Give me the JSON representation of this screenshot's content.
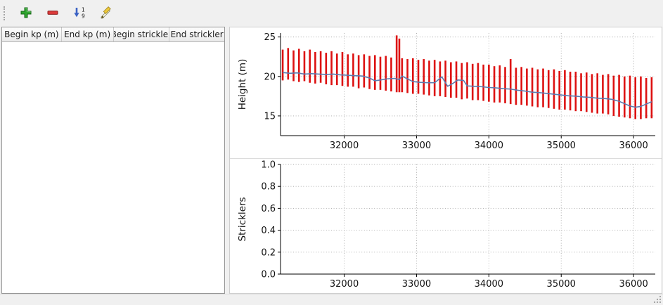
{
  "toolbar": {
    "buttons": [
      {
        "id": "add",
        "tooltip": "Add"
      },
      {
        "id": "remove",
        "tooltip": "Remove"
      },
      {
        "id": "sort",
        "tooltip": "Sort"
      },
      {
        "id": "edit",
        "tooltip": "Edit"
      }
    ]
  },
  "table": {
    "columns": [
      "Begin kp (m)",
      "End kp (m)",
      "Begin strickler",
      "End strickler"
    ],
    "rows": []
  },
  "colors": {
    "bars": "#dd1111",
    "line": "#5b7cb0",
    "grid": "#a8a8a8",
    "axis": "#000000"
  },
  "chart_data": [
    {
      "type": "line",
      "subtype": "range-bars-with-mean-line",
      "title": "",
      "xlabel": "",
      "ylabel": "Height (m)",
      "xlim": [
        31120,
        36300
      ],
      "ylim": [
        12.5,
        25.5
      ],
      "xticks": [
        32000,
        33000,
        34000,
        35000,
        36000
      ],
      "xtick_labels": [
        "32000",
        "33000",
        "34000",
        "35000",
        "36000"
      ],
      "yticks": [
        15,
        20,
        25
      ],
      "ytick_labels": [
        "15",
        "20",
        "25"
      ],
      "grid": true,
      "legend": null,
      "bars": [
        [
          31150,
          19.5,
          23.4
        ],
        [
          31225,
          19.6,
          23.6
        ],
        [
          31300,
          19.4,
          23.3
        ],
        [
          31375,
          19.3,
          23.5
        ],
        [
          31450,
          19.4,
          23.2
        ],
        [
          31525,
          19.2,
          23.4
        ],
        [
          31600,
          19.1,
          23.1
        ],
        [
          31675,
          19.2,
          23.2
        ],
        [
          31750,
          19.0,
          23.0
        ],
        [
          31825,
          18.9,
          23.2
        ],
        [
          31900,
          18.9,
          22.9
        ],
        [
          31975,
          18.8,
          23.1
        ],
        [
          32050,
          18.7,
          22.8
        ],
        [
          32125,
          18.7,
          22.9
        ],
        [
          32200,
          18.5,
          22.7
        ],
        [
          32275,
          18.6,
          22.8
        ],
        [
          32350,
          18.4,
          22.6
        ],
        [
          32425,
          18.3,
          22.7
        ],
        [
          32500,
          18.3,
          22.5
        ],
        [
          32575,
          18.2,
          22.6
        ],
        [
          32650,
          18.1,
          22.4
        ],
        [
          32725,
          18.0,
          25.2
        ],
        [
          32762,
          18.0,
          24.8
        ],
        [
          32800,
          18.0,
          22.3
        ],
        [
          32875,
          17.9,
          22.2
        ],
        [
          32950,
          17.8,
          22.3
        ],
        [
          33025,
          17.8,
          22.1
        ],
        [
          33100,
          17.7,
          22.2
        ],
        [
          33175,
          17.6,
          22.0
        ],
        [
          33250,
          17.5,
          22.1
        ],
        [
          33325,
          17.5,
          21.9
        ],
        [
          33400,
          17.4,
          22.0
        ],
        [
          33475,
          17.3,
          21.8
        ],
        [
          33550,
          17.3,
          21.9
        ],
        [
          33625,
          17.1,
          21.7
        ],
        [
          33700,
          17.2,
          21.8
        ],
        [
          33775,
          17.0,
          21.6
        ],
        [
          33850,
          17.0,
          21.7
        ],
        [
          33925,
          16.9,
          21.5
        ],
        [
          34000,
          16.8,
          21.5
        ],
        [
          34075,
          16.7,
          21.3
        ],
        [
          34150,
          16.7,
          21.4
        ],
        [
          34225,
          16.6,
          21.2
        ],
        [
          34300,
          16.5,
          22.2
        ],
        [
          34375,
          16.4,
          21.1
        ],
        [
          34450,
          16.4,
          21.2
        ],
        [
          34525,
          16.3,
          21.0
        ],
        [
          34600,
          16.2,
          21.1
        ],
        [
          34675,
          16.1,
          20.9
        ],
        [
          34750,
          16.1,
          21.0
        ],
        [
          34825,
          16.0,
          20.8
        ],
        [
          34900,
          15.9,
          20.9
        ],
        [
          34975,
          15.8,
          20.7
        ],
        [
          35050,
          15.8,
          20.8
        ],
        [
          35125,
          15.7,
          20.6
        ],
        [
          35200,
          15.6,
          20.6
        ],
        [
          35275,
          15.6,
          20.4
        ],
        [
          35350,
          15.5,
          20.5
        ],
        [
          35425,
          15.4,
          20.3
        ],
        [
          35500,
          15.3,
          20.4
        ],
        [
          35575,
          15.3,
          20.2
        ],
        [
          35650,
          15.2,
          20.3
        ],
        [
          35725,
          15.0,
          20.1
        ],
        [
          35800,
          14.9,
          20.2
        ],
        [
          35875,
          14.8,
          20.0
        ],
        [
          35950,
          14.7,
          20.1
        ],
        [
          36025,
          14.6,
          19.9
        ],
        [
          36100,
          14.6,
          20.0
        ],
        [
          36175,
          14.7,
          19.8
        ],
        [
          36250,
          14.7,
          19.9
        ]
      ],
      "line": [
        [
          31150,
          20.5
        ],
        [
          31250,
          20.4
        ],
        [
          31350,
          20.45
        ],
        [
          31450,
          20.3
        ],
        [
          31550,
          20.35
        ],
        [
          31650,
          20.3
        ],
        [
          31750,
          20.25
        ],
        [
          31850,
          20.3
        ],
        [
          31950,
          20.2
        ],
        [
          32050,
          20.15
        ],
        [
          32150,
          20.1
        ],
        [
          32250,
          20.05
        ],
        [
          32350,
          19.8
        ],
        [
          32425,
          19.45
        ],
        [
          32500,
          19.55
        ],
        [
          32600,
          19.7
        ],
        [
          32700,
          19.75
        ],
        [
          32760,
          19.6
        ],
        [
          32800,
          20.05
        ],
        [
          32850,
          19.8
        ],
        [
          32950,
          19.35
        ],
        [
          33050,
          19.25
        ],
        [
          33150,
          19.2
        ],
        [
          33250,
          19.2
        ],
        [
          33350,
          19.95
        ],
        [
          33430,
          18.75
        ],
        [
          33500,
          19.1
        ],
        [
          33570,
          19.55
        ],
        [
          33650,
          19.5
        ],
        [
          33700,
          18.8
        ],
        [
          33800,
          18.75
        ],
        [
          33900,
          18.7
        ],
        [
          34000,
          18.6
        ],
        [
          34100,
          18.55
        ],
        [
          34200,
          18.45
        ],
        [
          34300,
          18.4
        ],
        [
          34400,
          18.25
        ],
        [
          34500,
          18.15
        ],
        [
          34600,
          18.0
        ],
        [
          34700,
          17.95
        ],
        [
          34800,
          17.85
        ],
        [
          34900,
          17.75
        ],
        [
          35000,
          17.65
        ],
        [
          35100,
          17.55
        ],
        [
          35200,
          17.5
        ],
        [
          35300,
          17.4
        ],
        [
          35400,
          17.35
        ],
        [
          35500,
          17.25
        ],
        [
          35600,
          17.2
        ],
        [
          35700,
          17.1
        ],
        [
          35800,
          16.85
        ],
        [
          35875,
          16.55
        ],
        [
          35950,
          16.25
        ],
        [
          36025,
          16.1
        ],
        [
          36100,
          16.2
        ],
        [
          36175,
          16.5
        ],
        [
          36250,
          16.8
        ]
      ]
    },
    {
      "type": "empty",
      "title": "",
      "xlabel": "",
      "ylabel": "Stricklers",
      "xlim": [
        31120,
        36300
      ],
      "ylim": [
        0,
        1
      ],
      "xticks": [
        32000,
        33000,
        34000,
        35000,
        36000
      ],
      "xtick_labels": [
        "32000",
        "33000",
        "34000",
        "35000",
        "36000"
      ],
      "yticks": [
        0,
        0.2,
        0.4,
        0.6,
        0.8,
        1.0
      ],
      "ytick_labels": [
        "0.0",
        "0.2",
        "0.4",
        "0.6",
        "0.8",
        "1.0"
      ],
      "grid": true,
      "legend": null,
      "bars": [],
      "line": []
    }
  ]
}
